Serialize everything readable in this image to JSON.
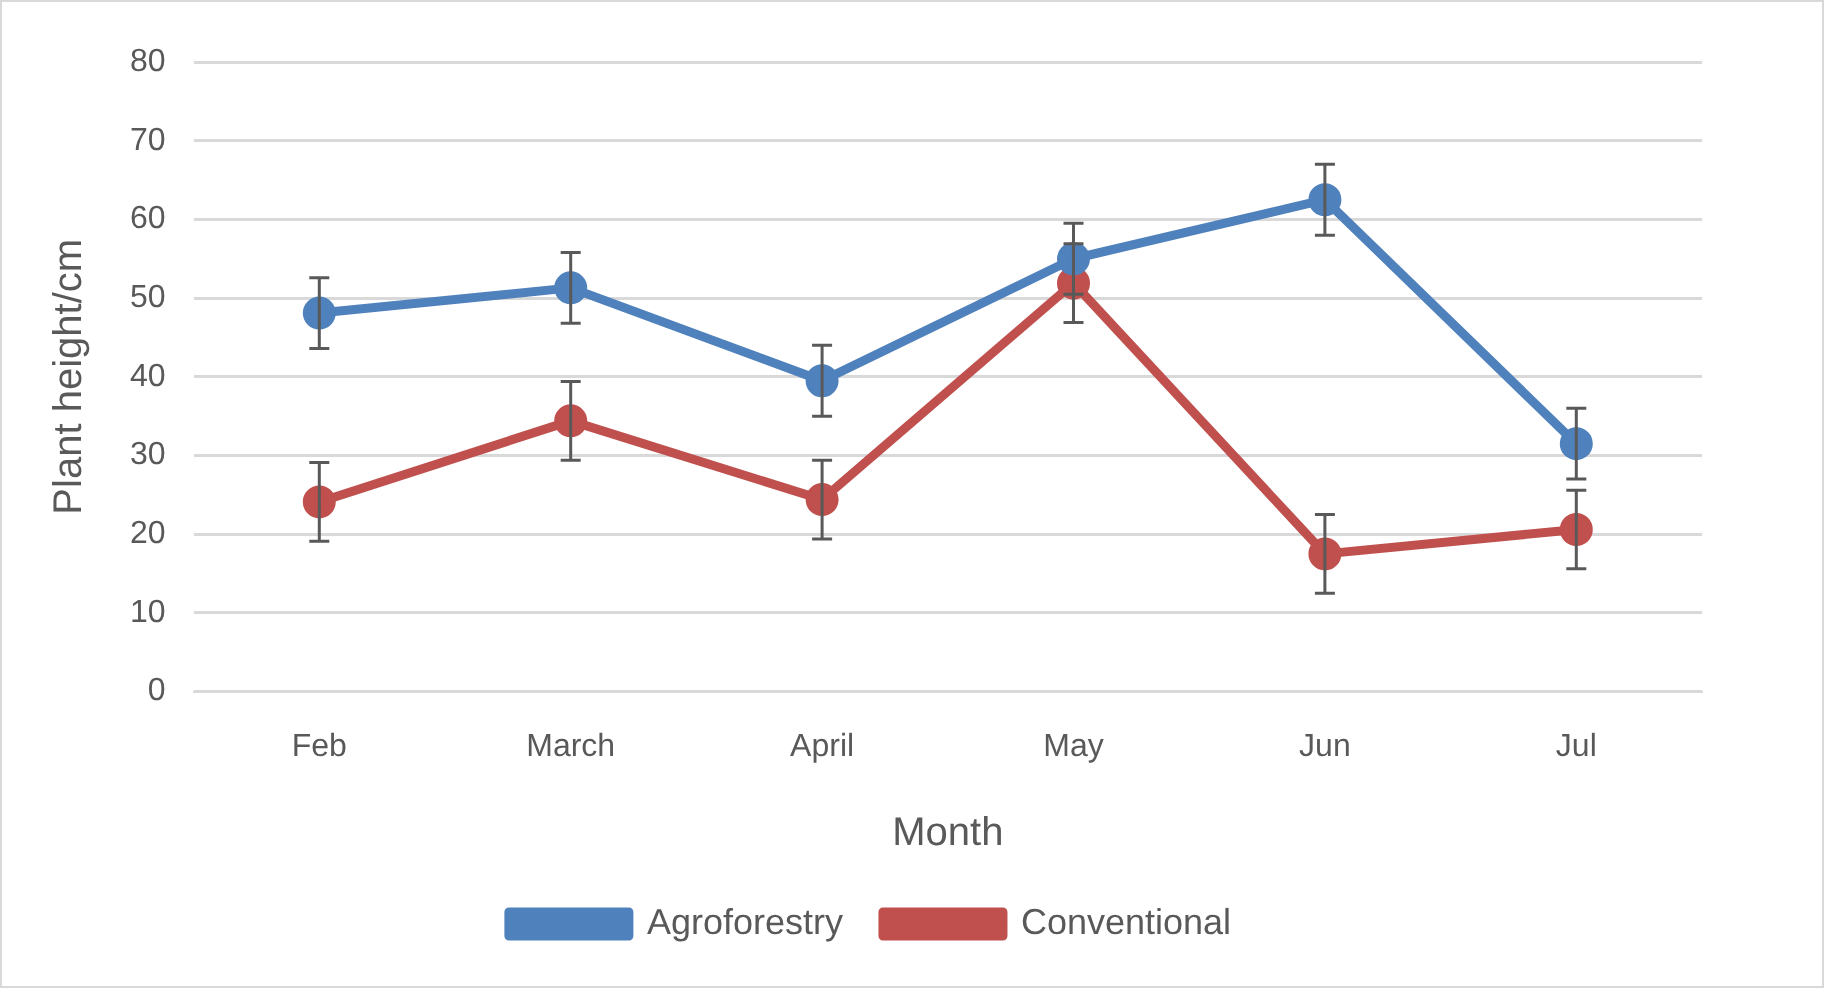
{
  "chart_data": {
    "type": "line",
    "xlabel": "Month",
    "ylabel": "Plant height/cm",
    "categories": [
      "Feb",
      "March",
      "April",
      "May",
      "Jun",
      "Jul"
    ],
    "series": [
      {
        "name": "Agroforestry",
        "color": "#4f81bd",
        "values": [
          48.1,
          51.3,
          39.5,
          55,
          62.5,
          31.5
        ],
        "errors": [
          4.5,
          4.5,
          4.5,
          4.5,
          4.5,
          4.5
        ]
      },
      {
        "name": "Conventional",
        "color": "#c0504d",
        "values": [
          24.1,
          34.4,
          24.4,
          51.9,
          17.5,
          20.6
        ],
        "errors": [
          5,
          5,
          5,
          5,
          5,
          5
        ]
      }
    ],
    "ylim": [
      0,
      80
    ],
    "yticks": [
      0,
      10,
      20,
      30,
      40,
      50,
      60,
      70,
      80
    ],
    "grid": "y",
    "legend": "bottom",
    "marker": "circle",
    "line_style": "solid"
  }
}
